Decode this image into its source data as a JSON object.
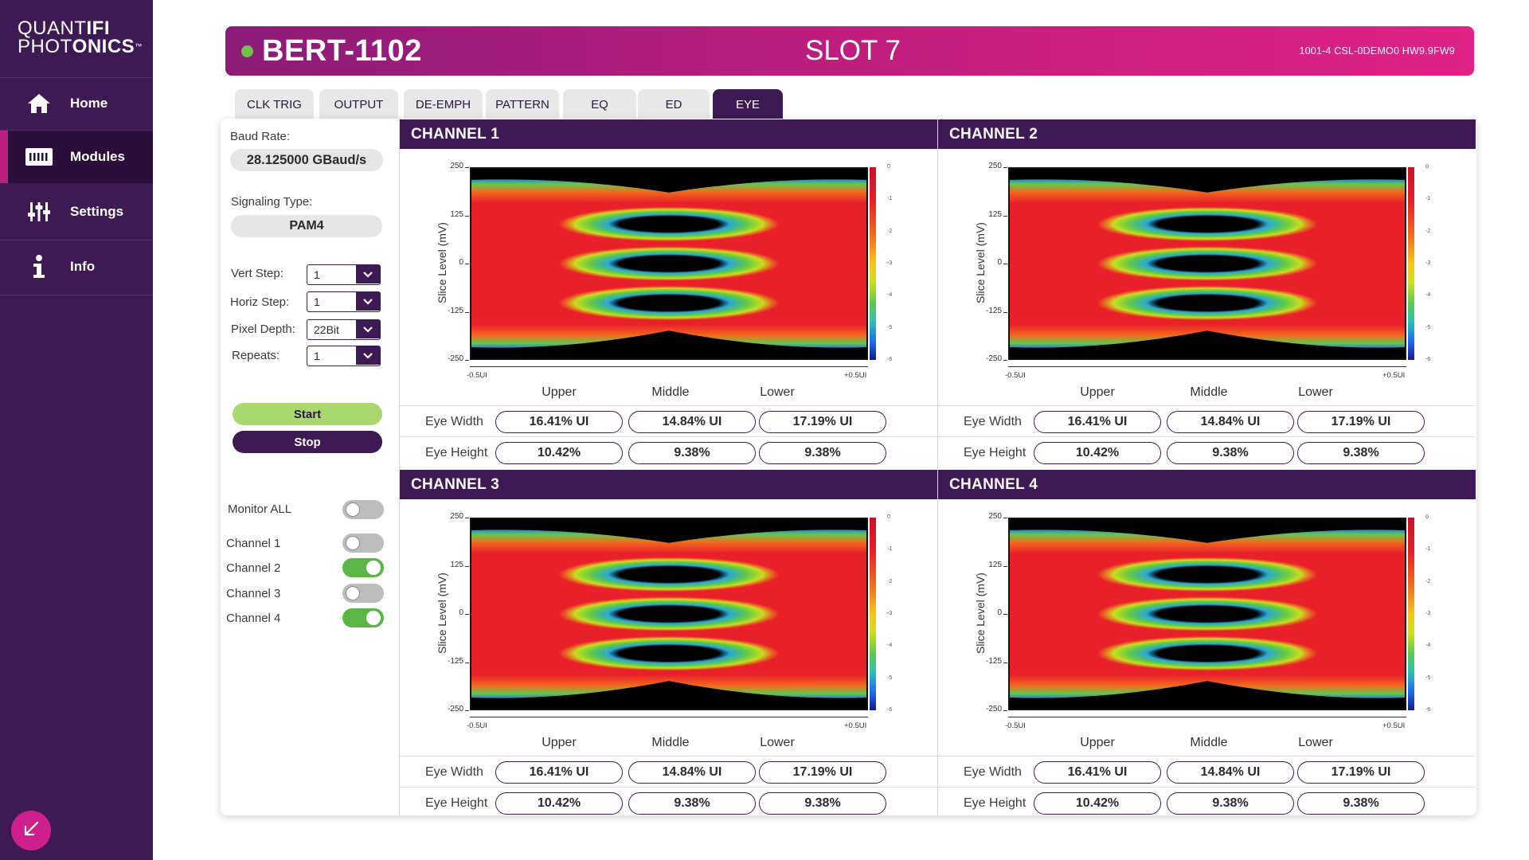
{
  "brand": {
    "line1_a": "QUANT",
    "line1_b": "IFI",
    "line2_a": "PHOT",
    "line2_b": "ONICS",
    "tm": "™"
  },
  "nav": [
    {
      "label": "Home",
      "icon": "home-icon"
    },
    {
      "label": "Modules",
      "icon": "modules-icon",
      "active": true
    },
    {
      "label": "Settings",
      "icon": "settings-icon"
    },
    {
      "label": "Info",
      "icon": "info-icon"
    }
  ],
  "header": {
    "module": "BERT-1102",
    "slot": "SLOT 7",
    "hw_info": "1001-4   CSL-0DEMO0   HW9.9FW9",
    "status_color": "#6fc24b"
  },
  "tabs": [
    {
      "label": "CLK TRIG"
    },
    {
      "label": "OUTPUT"
    },
    {
      "label": "DE-EMPH"
    },
    {
      "label": "PATTERN"
    },
    {
      "label": "EQ"
    },
    {
      "label": "ED"
    },
    {
      "label": "EYE",
      "active": true
    }
  ],
  "settings": {
    "baud_label": "Baud Rate:",
    "baud_value": "28.125000 GBaud/s",
    "signaling_label": "Signaling Type:",
    "signaling_value": "PAM4",
    "vert_step_label": "Vert Step:",
    "vert_step_value": "1",
    "horiz_step_label": "Horiz Step:",
    "horiz_step_value": "1",
    "pixel_depth_label": "Pixel Depth:",
    "pixel_depth_value": "22Bit",
    "repeats_label": "Repeats:",
    "repeats_value": "1",
    "start_label": "Start",
    "stop_label": "Stop"
  },
  "monitor": {
    "all_label": "Monitor ALL",
    "all_on": false,
    "channels": [
      {
        "label": "Channel 1",
        "on": false
      },
      {
        "label": "Channel 2",
        "on": true
      },
      {
        "label": "Channel 3",
        "on": false
      },
      {
        "label": "Channel 4",
        "on": true
      }
    ]
  },
  "plot": {
    "ylabel": "Slice Level (mV)",
    "yticks": [
      "250",
      "125",
      "0",
      "-125",
      "-250"
    ],
    "xtick_left": "-0.5UI",
    "xtick_right": "+0.5UI",
    "cbar_ticks": [
      "0",
      "-1",
      "-2",
      "-3",
      "-4",
      "-5",
      "-6"
    ],
    "col_names": [
      "Upper",
      "Middle",
      "Lower"
    ],
    "row_eye_width": "Eye Width",
    "row_eye_height": "Eye Height"
  },
  "channels": [
    {
      "name": "CHANNEL 1",
      "eye_width": [
        "16.41% UI",
        "14.84% UI",
        "17.19% UI"
      ],
      "eye_height": [
        "10.42%",
        "9.38%",
        "9.38%"
      ]
    },
    {
      "name": "CHANNEL 2",
      "eye_width": [
        "16.41% UI",
        "14.84% UI",
        "17.19% UI"
      ],
      "eye_height": [
        "10.42%",
        "9.38%",
        "9.38%"
      ]
    },
    {
      "name": "CHANNEL 3",
      "eye_width": [
        "16.41% UI",
        "14.84% UI",
        "17.19% UI"
      ],
      "eye_height": [
        "10.42%",
        "9.38%",
        "9.38%"
      ]
    },
    {
      "name": "CHANNEL 4",
      "eye_width": [
        "16.41% UI",
        "14.84% UI",
        "17.19% UI"
      ],
      "eye_height": [
        "10.42%",
        "9.38%",
        "9.38%"
      ]
    }
  ],
  "colors": {
    "purple": "#3d1a54",
    "magenta": "#c41e7f",
    "green": "#5ab646"
  }
}
